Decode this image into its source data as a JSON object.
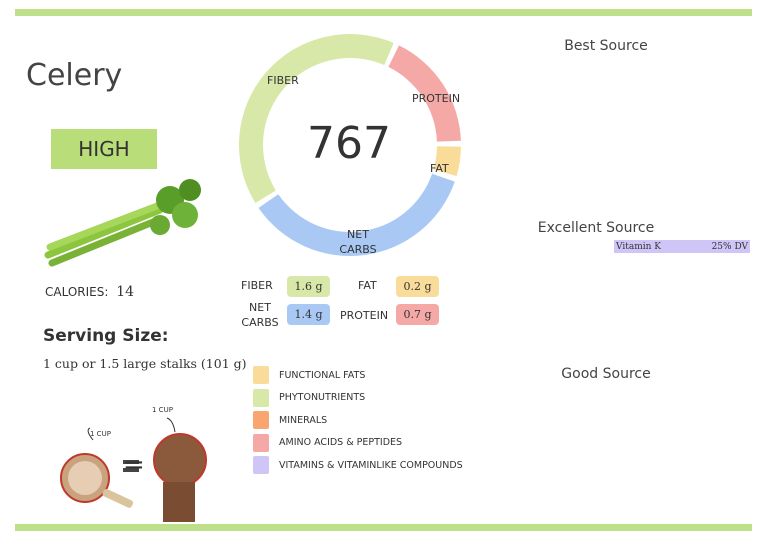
{
  "food": {
    "name": "Celery",
    "rating": "HIGH",
    "calories_label": "CALORIES:",
    "calories": "14"
  },
  "serving": {
    "heading": "Serving Size:",
    "text": "1 cup or 1.5 large stalks (101 g)",
    "cup_label_1": "1 CUP",
    "cup_label_2": "1 CUP",
    "equals": "="
  },
  "donut": {
    "total": "767",
    "segments": [
      {
        "label": "FIBER",
        "value": 1.6,
        "color": "#d7e8a8"
      },
      {
        "label": "PROTEIN",
        "value": 0.7,
        "color": "#f4a9a6"
      },
      {
        "label": "FAT",
        "value": 0.2,
        "color": "#f9dc9a"
      },
      {
        "label": "NET CARBS",
        "value": 1.4,
        "color": "#a9c9f4"
      }
    ]
  },
  "macros": {
    "fiber_label": "FIBER",
    "fiber": "1.6 g",
    "fat_label": "FAT",
    "fat": "0.2 g",
    "carbs_label": "NET CARBS",
    "carbs": "1.4 g",
    "protein_label": "PROTEIN",
    "protein": "0.7 g"
  },
  "legend": [
    {
      "label": "FUNCTIONAL  FATS",
      "color": "#f9dc9a"
    },
    {
      "label": "PHYTONUTRIENTS",
      "color": "#d7e8a8"
    },
    {
      "label": "MINERALS",
      "color": "#f9a56f"
    },
    {
      "label": "AMINO ACIDS & PEPTIDES",
      "color": "#f4a9a6"
    },
    {
      "label": "VITAMINS & VITAMINLIKE COMPOUNDS",
      "color": "#cfc6f7"
    }
  ],
  "sources": {
    "best": "Best Source",
    "excellent": "Excellent Source",
    "good": "Good Source",
    "excellent_items": [
      {
        "name": "Vitamin K",
        "dv": "25% DV",
        "color": "#cfc6f7"
      }
    ]
  }
}
